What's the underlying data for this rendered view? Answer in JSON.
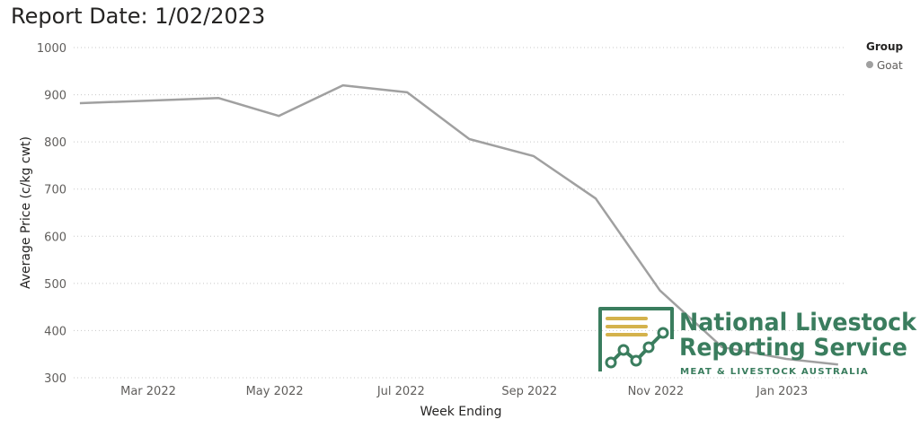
{
  "report": {
    "title": "Report Date: 1/02/2023"
  },
  "colors": {
    "series": "#a0a0a0",
    "grid": "#c8c8c8",
    "logo_green": "#3a7d5e",
    "logo_gold": "#d4b24c"
  },
  "logo": {
    "line1": "National Livestock",
    "line2": "Reporting Service",
    "line3": "MEAT & LIVESTOCK AUSTRALIA"
  },
  "chart_data": {
    "type": "line",
    "xlabel": "Week Ending",
    "ylabel": "Average Price (c/kg cwt)",
    "ylim": [
      300,
      1000
    ],
    "yticks": [
      300,
      400,
      500,
      600,
      700,
      800,
      900,
      1000
    ],
    "xlim": [
      "2022-01-24",
      "2023-02-01"
    ],
    "xticks": [
      {
        "label": "Mar 2022",
        "date": "2022-03-01"
      },
      {
        "label": "May 2022",
        "date": "2022-05-01"
      },
      {
        "label": "Jul 2022",
        "date": "2022-07-01"
      },
      {
        "label": "Sep 2022",
        "date": "2022-09-01"
      },
      {
        "label": "Nov 2022",
        "date": "2022-11-01"
      },
      {
        "label": "Jan 2023",
        "date": "2023-01-01"
      }
    ],
    "grid": true,
    "legend": {
      "title": "Group",
      "position": "top-right"
    },
    "series": [
      {
        "name": "Goat",
        "points": [
          {
            "x": "2022-01-27",
            "y": 882
          },
          {
            "x": "2022-04-04",
            "y": 893
          },
          {
            "x": "2022-05-03",
            "y": 855
          },
          {
            "x": "2022-06-03",
            "y": 920
          },
          {
            "x": "2022-07-04",
            "y": 905
          },
          {
            "x": "2022-08-03",
            "y": 806
          },
          {
            "x": "2022-09-03",
            "y": 770
          },
          {
            "x": "2022-10-03",
            "y": 680
          },
          {
            "x": "2022-11-03",
            "y": 485
          },
          {
            "x": "2022-12-03",
            "y": 365
          },
          {
            "x": "2023-01-03",
            "y": 340
          },
          {
            "x": "2023-01-28",
            "y": 328
          }
        ]
      }
    ]
  }
}
